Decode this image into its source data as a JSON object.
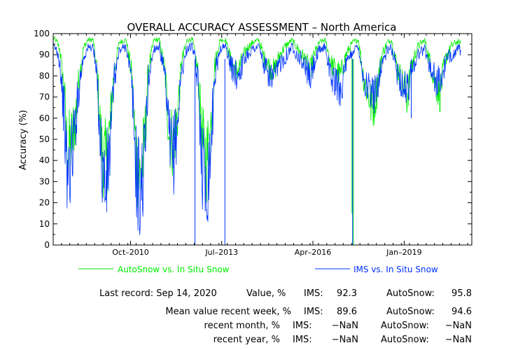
{
  "chart_data": {
    "type": "line",
    "title": "OVERALL ACCURACY ASSESSMENT – North America",
    "ylabel": "Accuracy (%)",
    "xlabel": "",
    "ylim": [
      0,
      100
    ],
    "xlim": [
      "2008-06-01",
      "2021-01-15"
    ],
    "yticks": [
      "0",
      "10",
      "20",
      "30",
      "40",
      "50",
      "60",
      "70",
      "80",
      "90",
      "100"
    ],
    "xticks": [
      {
        "label": "Oct–2010",
        "date": "2010-10-01"
      },
      {
        "label": "Jul–2013",
        "date": "2013-07-01"
      },
      {
        "label": "Apr–2016",
        "date": "2016-04-01"
      },
      {
        "label": "Jan–2019",
        "date": "2019-01-01"
      }
    ],
    "grid": false,
    "legend_position": "bottom",
    "series": [
      {
        "name": "AutoSnow vs. In Situ Snow",
        "color": "#00ee00",
        "points": [
          [
            "2008-06-01",
            98
          ],
          [
            "2008-07-15",
            96
          ],
          [
            "2008-08-15",
            92
          ],
          [
            "2008-10-01",
            72
          ],
          [
            "2008-11-01",
            45
          ],
          [
            "2008-12-15",
            48
          ],
          [
            "2009-02-01",
            60
          ],
          [
            "2009-03-15",
            80
          ],
          [
            "2009-05-01",
            93
          ],
          [
            "2009-06-15",
            97
          ],
          [
            "2009-08-15",
            97
          ],
          [
            "2009-10-01",
            80
          ],
          [
            "2009-11-15",
            45
          ],
          [
            "2010-01-01",
            38
          ],
          [
            "2010-02-15",
            55
          ],
          [
            "2010-04-01",
            82
          ],
          [
            "2010-06-01",
            96
          ],
          [
            "2010-08-15",
            97
          ],
          [
            "2010-10-15",
            80
          ],
          [
            "2010-12-01",
            42
          ],
          [
            "2011-01-15",
            30
          ],
          [
            "2011-03-01",
            45
          ],
          [
            "2011-04-15",
            82
          ],
          [
            "2011-06-15",
            97
          ],
          [
            "2011-08-15",
            97
          ],
          [
            "2011-10-15",
            82
          ],
          [
            "2011-12-01",
            52
          ],
          [
            "2012-01-15",
            48
          ],
          [
            "2012-03-01",
            62
          ],
          [
            "2012-04-15",
            86
          ],
          [
            "2012-06-15",
            97
          ],
          [
            "2012-08-15",
            97
          ],
          [
            "2012-10-15",
            80
          ],
          [
            "2012-12-01",
            48
          ],
          [
            "2013-01-15",
            40
          ],
          [
            "2013-03-01",
            55
          ],
          [
            "2013-04-15",
            85
          ],
          [
            "2013-06-15",
            97
          ],
          [
            "2013-08-15",
            97
          ],
          [
            "2013-10-15",
            86
          ],
          [
            "2013-12-15",
            82
          ],
          [
            "2014-02-01",
            86
          ],
          [
            "2014-04-01",
            93
          ],
          [
            "2014-06-15",
            96
          ],
          [
            "2014-08-15",
            97
          ],
          [
            "2014-10-15",
            88
          ],
          [
            "2014-12-15",
            84
          ],
          [
            "2015-02-01",
            82
          ],
          [
            "2015-04-01",
            90
          ],
          [
            "2015-06-01",
            94
          ],
          [
            "2015-08-15",
            97
          ],
          [
            "2016-01-15",
            87
          ],
          [
            "2016-03-01",
            82
          ],
          [
            "2016-04-15",
            90
          ],
          [
            "2016-06-15",
            96
          ],
          [
            "2016-08-15",
            97
          ],
          [
            "2016-10-15",
            86
          ],
          [
            "2016-12-15",
            82
          ],
          [
            "2017-02-01",
            80
          ],
          [
            "2017-04-01",
            90
          ],
          [
            "2017-06-15",
            96
          ],
          [
            "2017-08-15",
            97
          ],
          [
            "2017-10-15",
            78
          ],
          [
            "2017-12-01",
            72
          ],
          [
            "2018-01-15",
            64
          ],
          [
            "2018-03-01",
            72
          ],
          [
            "2018-05-01",
            90
          ],
          [
            "2018-07-01",
            96
          ],
          [
            "2018-08-15",
            97
          ],
          [
            "2018-10-15",
            84
          ],
          [
            "2018-12-15",
            76
          ],
          [
            "2019-02-01",
            70
          ],
          [
            "2019-04-01",
            86
          ],
          [
            "2019-06-01",
            94
          ],
          [
            "2019-08-15",
            97
          ],
          [
            "2019-10-15",
            86
          ],
          [
            "2019-12-15",
            76
          ],
          [
            "2020-02-01",
            72
          ],
          [
            "2020-04-01",
            88
          ],
          [
            "2020-06-01",
            94
          ],
          [
            "2020-08-01",
            96
          ],
          [
            "2020-09-14",
            95.8
          ]
        ],
        "spikes": [
          {
            "date": "2017-06-05",
            "low": 15
          },
          {
            "date": "2017-06-20",
            "low": 0
          }
        ]
      },
      {
        "name": "IMS vs. In Situ Snow",
        "color": "#0033ff",
        "points": [
          [
            "2008-06-01",
            94
          ],
          [
            "2008-07-15",
            92
          ],
          [
            "2008-08-15",
            86
          ],
          [
            "2008-10-01",
            60
          ],
          [
            "2008-11-01",
            32
          ],
          [
            "2008-12-15",
            40
          ],
          [
            "2009-02-01",
            58
          ],
          [
            "2009-03-15",
            76
          ],
          [
            "2009-05-01",
            89
          ],
          [
            "2009-06-15",
            93
          ],
          [
            "2009-08-15",
            94
          ],
          [
            "2009-10-01",
            76
          ],
          [
            "2009-11-15",
            40
          ],
          [
            "2010-01-01",
            26
          ],
          [
            "2010-02-15",
            45
          ],
          [
            "2010-04-01",
            78
          ],
          [
            "2010-06-01",
            92
          ],
          [
            "2010-08-15",
            94
          ],
          [
            "2010-10-15",
            76
          ],
          [
            "2010-12-01",
            36
          ],
          [
            "2011-01-15",
            22
          ],
          [
            "2011-03-01",
            40
          ],
          [
            "2011-04-15",
            78
          ],
          [
            "2011-06-15",
            93
          ],
          [
            "2011-08-15",
            94
          ],
          [
            "2011-10-15",
            78
          ],
          [
            "2011-12-01",
            48
          ],
          [
            "2012-01-15",
            42
          ],
          [
            "2012-03-01",
            58
          ],
          [
            "2012-04-15",
            82
          ],
          [
            "2012-06-15",
            93
          ],
          [
            "2012-08-15",
            94
          ],
          [
            "2012-10-15",
            76
          ],
          [
            "2012-12-01",
            38
          ],
          [
            "2013-01-15",
            28
          ],
          [
            "2013-03-01",
            45
          ],
          [
            "2013-04-15",
            80
          ],
          [
            "2013-06-15",
            93
          ],
          [
            "2013-08-15",
            94
          ],
          [
            "2013-10-15",
            84
          ],
          [
            "2013-12-15",
            80
          ],
          [
            "2014-02-01",
            84
          ],
          [
            "2014-04-01",
            90
          ],
          [
            "2014-06-15",
            93
          ],
          [
            "2014-08-15",
            94
          ],
          [
            "2014-10-15",
            84
          ],
          [
            "2014-12-15",
            80
          ],
          [
            "2015-02-01",
            78
          ],
          [
            "2015-04-01",
            86
          ],
          [
            "2015-06-01",
            89
          ],
          [
            "2015-08-15",
            94
          ],
          [
            "2016-01-15",
            84
          ],
          [
            "2016-03-01",
            78
          ],
          [
            "2016-04-15",
            86
          ],
          [
            "2016-06-15",
            92
          ],
          [
            "2016-08-15",
            94
          ],
          [
            "2016-10-15",
            80
          ],
          [
            "2016-12-15",
            76
          ],
          [
            "2017-02-01",
            74
          ],
          [
            "2017-04-01",
            84
          ],
          [
            "2017-06-15",
            92
          ],
          [
            "2017-08-15",
            94
          ],
          [
            "2017-10-15",
            78
          ],
          [
            "2017-12-01",
            74
          ],
          [
            "2018-01-15",
            70
          ],
          [
            "2018-03-01",
            74
          ],
          [
            "2018-05-01",
            86
          ],
          [
            "2018-07-01",
            92
          ],
          [
            "2018-08-15",
            93
          ],
          [
            "2018-10-15",
            82
          ],
          [
            "2018-12-15",
            76
          ],
          [
            "2019-02-01",
            72
          ],
          [
            "2019-04-01",
            84
          ],
          [
            "2019-06-01",
            90
          ],
          [
            "2019-08-15",
            93
          ],
          [
            "2019-10-15",
            84
          ],
          [
            "2019-12-15",
            78
          ],
          [
            "2020-02-01",
            76
          ],
          [
            "2020-04-01",
            86
          ],
          [
            "2020-06-01",
            90
          ],
          [
            "2020-08-01",
            92
          ],
          [
            "2020-09-14",
            92.3
          ]
        ],
        "spikes": [
          {
            "date": "2012-09-10",
            "low": 0
          },
          {
            "date": "2013-08-05",
            "low": 0
          },
          {
            "date": "2017-06-12",
            "low": 0
          },
          {
            "date": "2019-03-20",
            "low": 60
          }
        ]
      }
    ]
  },
  "legend": {
    "autosnow": "AutoSnow vs. In Situ Snow",
    "ims": "IMS vs. In Situ Snow"
  },
  "stats": {
    "last_record_label": "Last record: Sep 14, 2020",
    "value_label": "Value, %",
    "week_label": "Mean value recent week, %",
    "month_label": "recent month, %",
    "year_label": "recent year, %",
    "ims_label": "IMS:",
    "autosnow_label": "AutoSnow:",
    "value_ims": "92.3",
    "value_autosnow": "95.8",
    "week_ims": "89.6",
    "week_autosnow": "94.6",
    "month_ims": "−NaN",
    "month_autosnow": "−NaN",
    "year_ims": "−NaN",
    "year_autosnow": "−NaN"
  }
}
